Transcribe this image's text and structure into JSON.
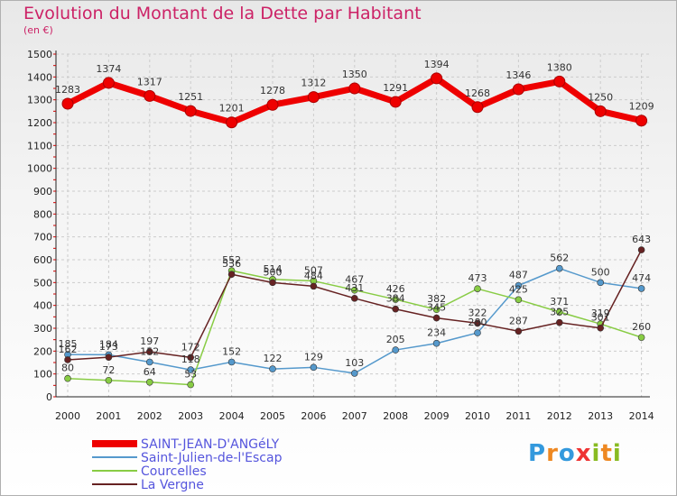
{
  "chart_data": {
    "type": "line",
    "title": "Evolution du Montant de la Dette par Habitant",
    "unit": "(en €)",
    "x": [
      "2000",
      "2001",
      "2002",
      "2003",
      "2004",
      "2005",
      "2006",
      "2007",
      "2008",
      "2009",
      "2010",
      "2011",
      "2012",
      "2013",
      "2014"
    ],
    "ylim": [
      0,
      1500
    ],
    "yticks": [
      0,
      100,
      200,
      300,
      400,
      500,
      600,
      700,
      800,
      900,
      1000,
      1100,
      1200,
      1300,
      1400,
      1500
    ],
    "grid": true,
    "legend_position": "bottom-left",
    "series": [
      {
        "name": "SAINT-JEAN-D'ANGéLY",
        "color": "#ee0000",
        "label_color": "#5555dd",
        "style": "thick",
        "values": [
          1283,
          1374,
          1317,
          1251,
          1201,
          1278,
          1312,
          1350,
          1291,
          1394,
          1268,
          1346,
          1380,
          1250,
          1209
        ]
      },
      {
        "name": "Saint-Julien-de-l'Escap",
        "color": "#5599cc",
        "label_color": "#5555dd",
        "style": "thin",
        "values": [
          185,
          184,
          152,
          118,
          152,
          122,
          129,
          103,
          205,
          234,
          280,
          487,
          562,
          500,
          474
        ]
      },
      {
        "name": "Courcelles",
        "color": "#88cc44",
        "label_color": "#5555dd",
        "style": "thin",
        "values": [
          80,
          72,
          64,
          53,
          552,
          514,
          507,
          467,
          426,
          382,
          473,
          425,
          371,
          319,
          260
        ]
      },
      {
        "name": "La Vergne",
        "color": "#662222",
        "label_color": "#5555dd",
        "style": "thin",
        "values": [
          162,
          173,
          197,
          172,
          536,
          500,
          484,
          431,
          384,
          345,
          322,
          287,
          325,
          301,
          643
        ]
      }
    ]
  },
  "logo": {
    "letters": [
      "P",
      "r",
      "o",
      "x",
      "i",
      "t",
      "i"
    ],
    "colors": [
      "#3399dd",
      "#ee8822",
      "#3399dd",
      "#ee3333",
      "#88bb22",
      "#ee8822",
      "#88bb22"
    ]
  }
}
